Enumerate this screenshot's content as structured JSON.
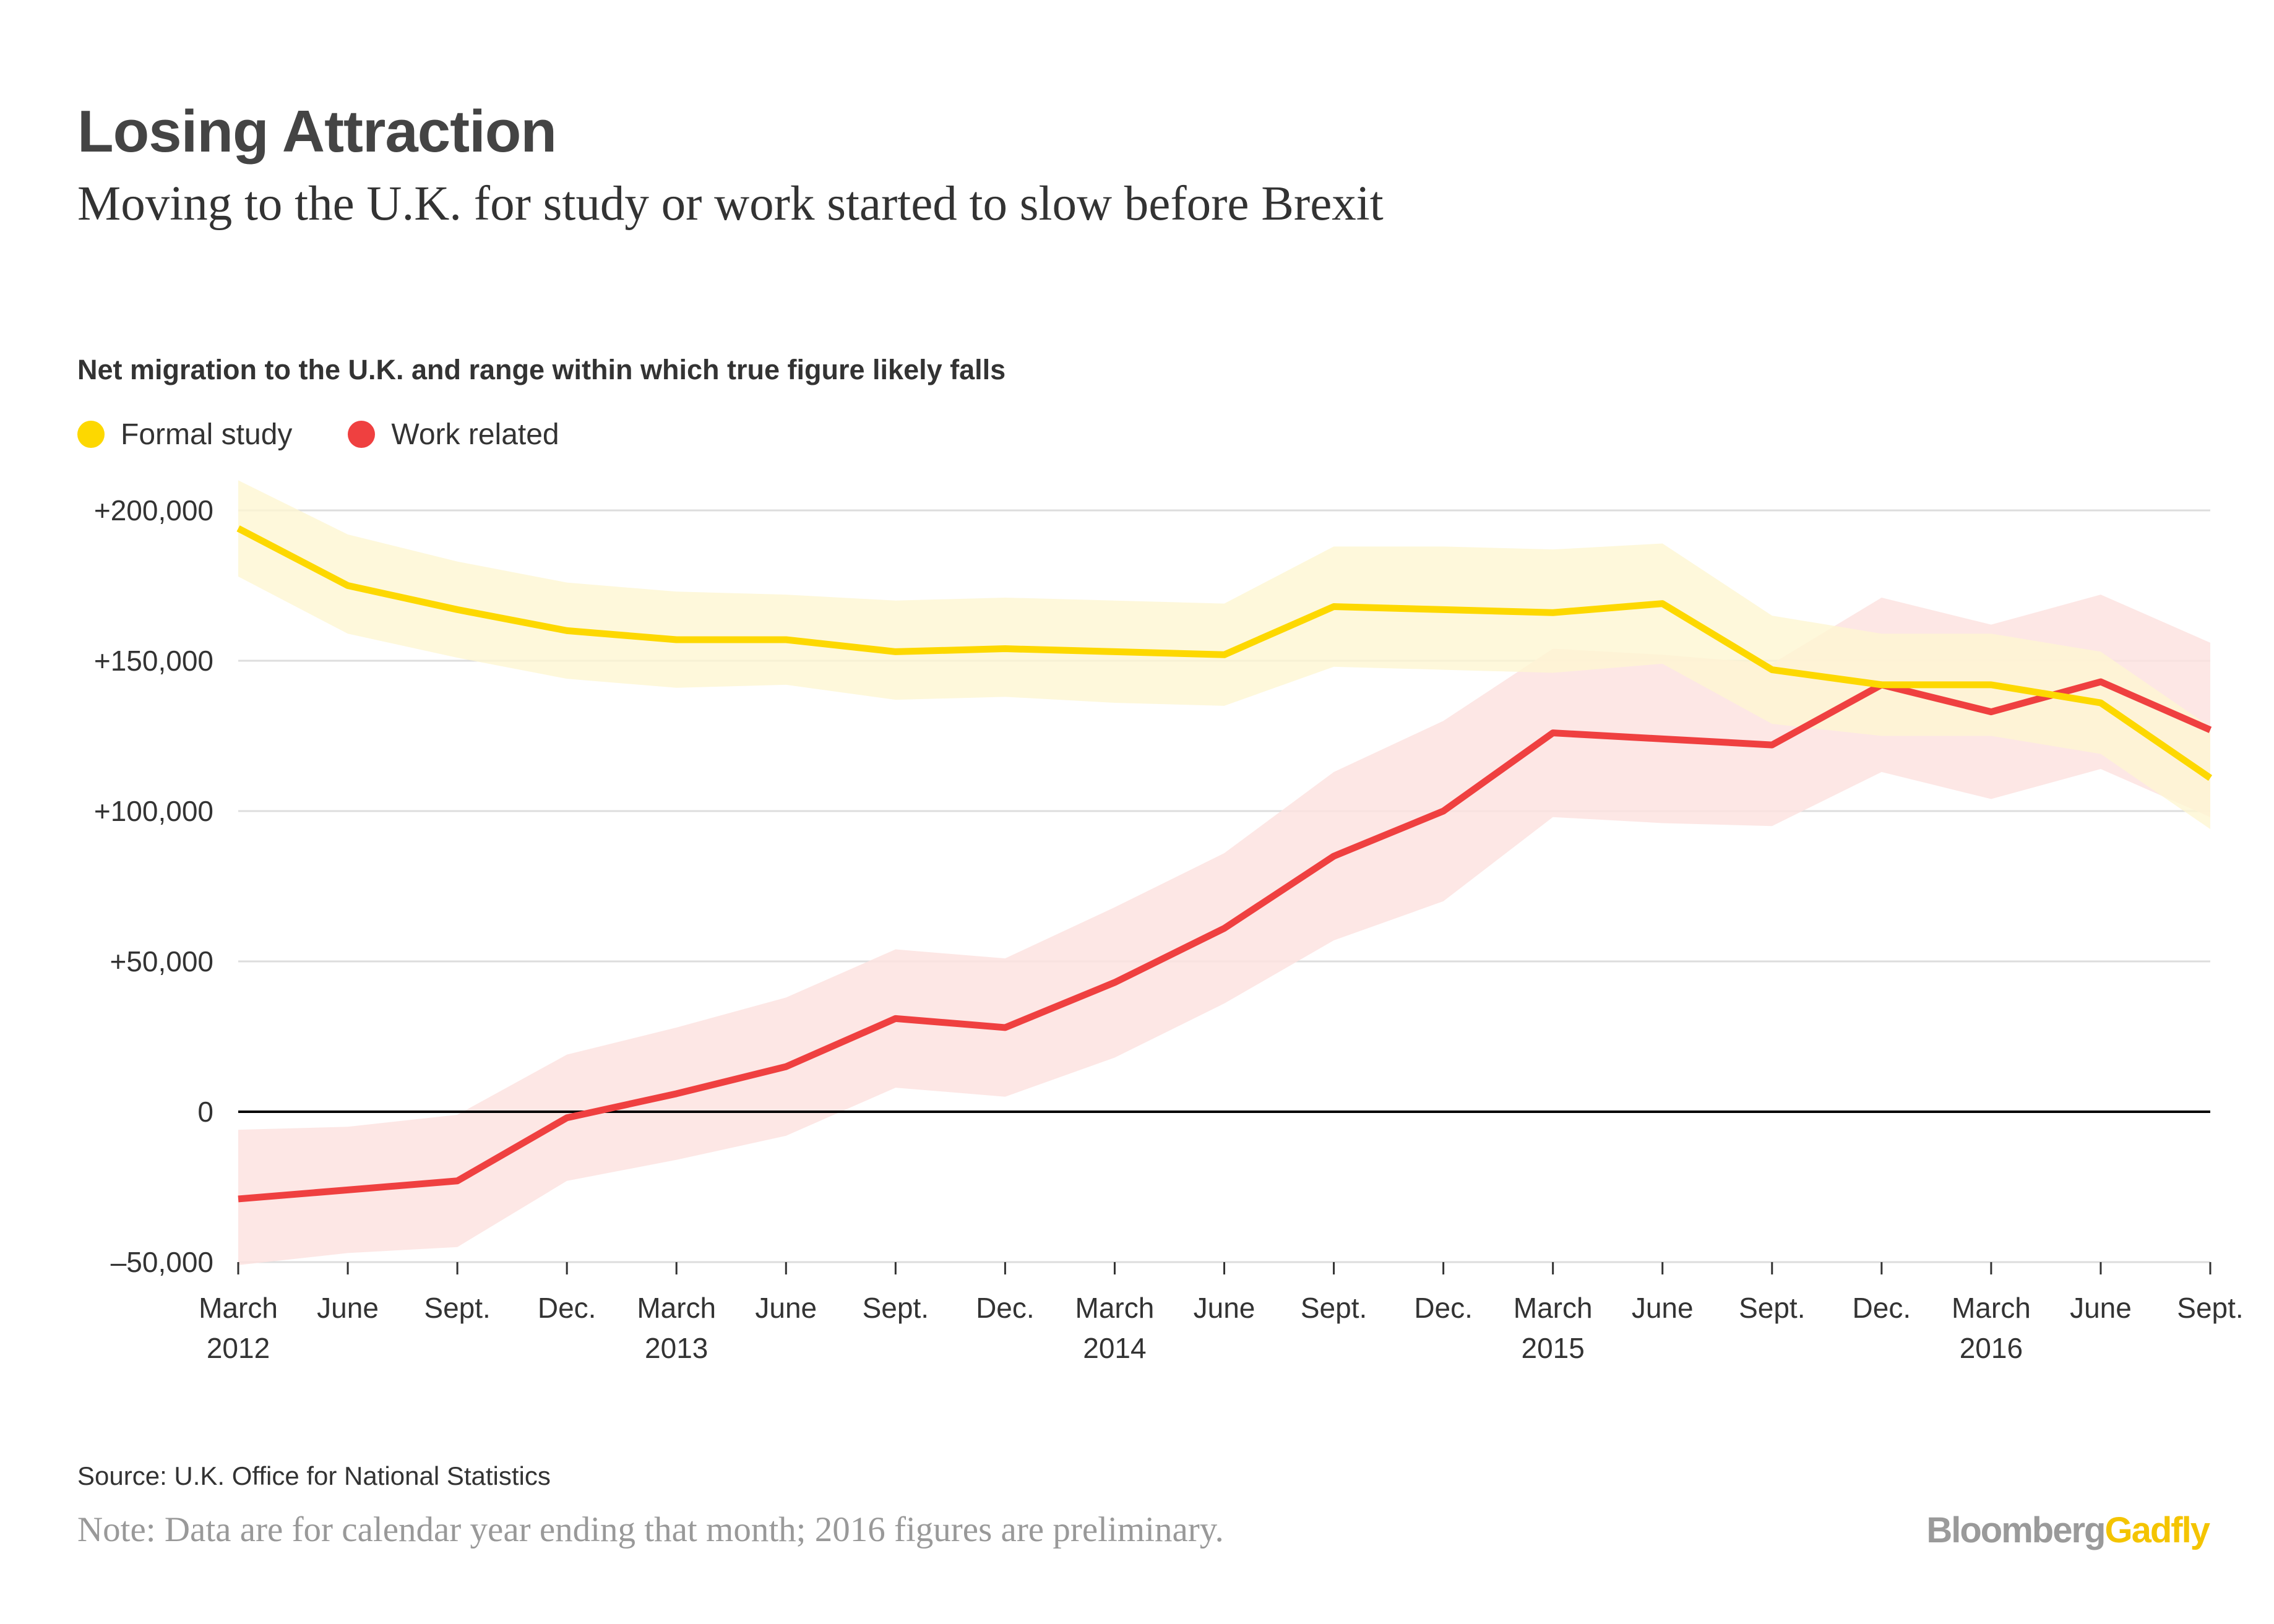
{
  "header": {
    "title": "Losing Attraction",
    "subtitle": "Moving to the U.K. for study or work started to slow before Brexit"
  },
  "footer": {
    "source": "Source: U.K. Office for National Statistics",
    "note": "Note: Data are for calendar year ending that month; 2016 figures are preliminary.",
    "brand_part1": "Bloomberg",
    "brand_part2": "Gadfly"
  },
  "colors": {
    "formal_study": "#fdd800",
    "formal_study_band": "#fef6d2",
    "work_related": "#ef4040",
    "work_related_band": "#fde3e1",
    "gridline": "#dddddd",
    "zero_line": "#000000"
  },
  "chart_data": {
    "type": "line",
    "title": "Net migration to the U.K. and range within which true figure likely falls",
    "ylim": [
      -50000,
      200000
    ],
    "y_ticks": [
      {
        "value": 200000,
        "label": "+200,000"
      },
      {
        "value": 150000,
        "label": "+150,000"
      },
      {
        "value": 100000,
        "label": "+100,000"
      },
      {
        "value": 50000,
        "label": "+50,000"
      },
      {
        "value": 0,
        "label": "0"
      },
      {
        "value": -50000,
        "label": "–50,000"
      }
    ],
    "categories": [
      "March 2012",
      "June 2012",
      "Sept. 2012",
      "Dec. 2012",
      "March 2013",
      "June 2013",
      "Sept. 2013",
      "Dec. 2013",
      "March 2014",
      "June 2014",
      "Sept. 2014",
      "Dec. 2014",
      "March 2015",
      "June 2015",
      "Sept. 2015",
      "Dec. 2015",
      "March 2016",
      "June 2016",
      "Sept. 2016"
    ],
    "x_tick_labels": [
      {
        "line1": "March",
        "line2": "2012"
      },
      {
        "line1": "June",
        "line2": ""
      },
      {
        "line1": "Sept.",
        "line2": ""
      },
      {
        "line1": "Dec.",
        "line2": ""
      },
      {
        "line1": "March",
        "line2": "2013"
      },
      {
        "line1": "June",
        "line2": ""
      },
      {
        "line1": "Sept.",
        "line2": ""
      },
      {
        "line1": "Dec.",
        "line2": ""
      },
      {
        "line1": "March",
        "line2": "2014"
      },
      {
        "line1": "June",
        "line2": ""
      },
      {
        "line1": "Sept.",
        "line2": ""
      },
      {
        "line1": "Dec.",
        "line2": ""
      },
      {
        "line1": "March",
        "line2": "2015"
      },
      {
        "line1": "June",
        "line2": ""
      },
      {
        "line1": "Sept.",
        "line2": ""
      },
      {
        "line1": "Dec.",
        "line2": ""
      },
      {
        "line1": "March",
        "line2": "2016"
      },
      {
        "line1": "June",
        "line2": ""
      },
      {
        "line1": "Sept.",
        "line2": ""
      }
    ],
    "legend": "top-left",
    "grid": true,
    "series": [
      {
        "name": "Formal study",
        "values": [
          194000,
          175000,
          167000,
          160000,
          157000,
          157000,
          153000,
          154000,
          153000,
          152000,
          168000,
          167000,
          166000,
          169000,
          147000,
          142000,
          142000,
          136000,
          111000
        ],
        "upper": [
          210000,
          192000,
          183000,
          176000,
          173000,
          172000,
          170000,
          171000,
          170000,
          169000,
          188000,
          188000,
          187000,
          189000,
          165000,
          159000,
          159000,
          153000,
          128000
        ],
        "lower": [
          178000,
          159000,
          151000,
          144000,
          141000,
          142000,
          137000,
          138000,
          136000,
          135000,
          148000,
          147000,
          146000,
          149000,
          129000,
          125000,
          125000,
          119000,
          94000
        ]
      },
      {
        "name": "Work related",
        "values": [
          -29000,
          -26000,
          -23000,
          -2000,
          6000,
          15000,
          31000,
          28000,
          43000,
          61000,
          85000,
          100000,
          126000,
          124000,
          122000,
          142000,
          133000,
          143000,
          127000
        ],
        "upper": [
          -6000,
          -5000,
          -1000,
          19000,
          28000,
          38000,
          54000,
          51000,
          68000,
          86000,
          113000,
          130000,
          154000,
          152000,
          149000,
          171000,
          162000,
          172000,
          156000
        ],
        "lower": [
          -51000,
          -47000,
          -45000,
          -23000,
          -16000,
          -8000,
          8000,
          5000,
          18000,
          36000,
          57000,
          70000,
          98000,
          96000,
          95000,
          113000,
          104000,
          114000,
          98000
        ]
      }
    ]
  }
}
